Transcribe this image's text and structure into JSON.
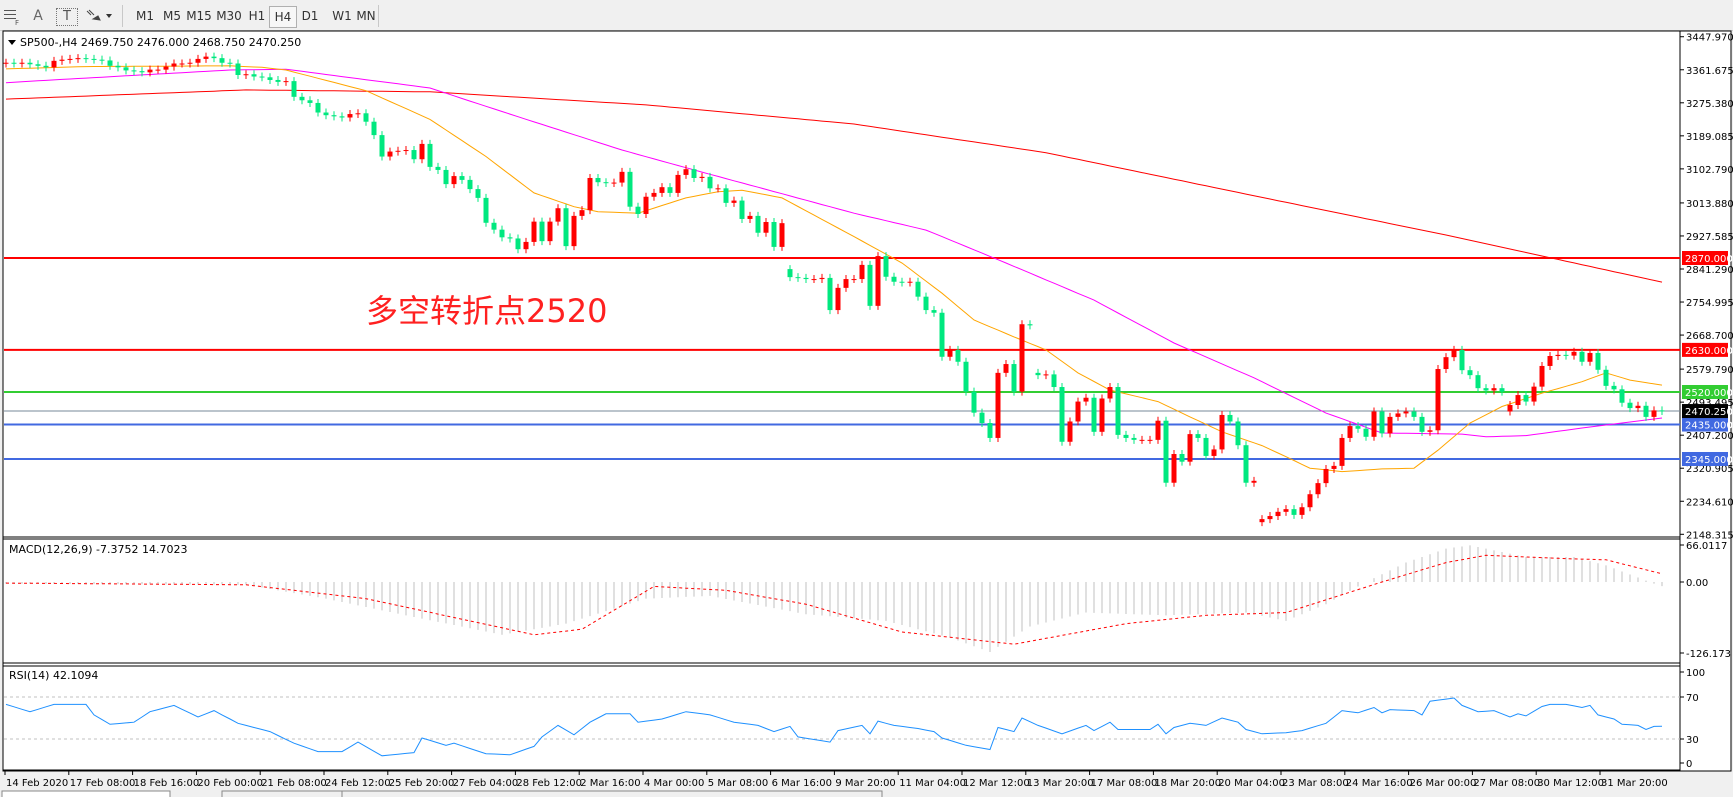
{
  "toolbar": {
    "tools": [
      {
        "icon": "period-separator-icon"
      },
      {
        "label": "A",
        "icon": "text-icon"
      },
      {
        "label": "T",
        "icon": "text-label-icon"
      },
      {
        "icon": "arrows-icon"
      }
    ],
    "timeframes": [
      "M1",
      "M5",
      "M15",
      "M30",
      "H1",
      "H4",
      "D1",
      "W1",
      "MN"
    ],
    "selected_timeframe": "H4"
  },
  "main_panel": {
    "header": "SP500-,H4  2469.750 2476.000 2468.750 2470.250",
    "annotation": "多空转折点2520",
    "price_ticks": [
      "3447.970",
      "3361.675",
      "3275.380",
      "3189.085",
      "3102.790",
      "3013.880",
      "2927.585",
      "2841.290",
      "2754.995",
      "2668.700",
      "2579.790",
      "2493.495",
      "2407.200",
      "2320.905",
      "2234.610",
      "2148.315"
    ],
    "levels": [
      {
        "price": 2870,
        "label": "2870.000",
        "color": "#ff0000"
      },
      {
        "price": 2630,
        "label": "2630.000",
        "color": "#ff0000"
      },
      {
        "price": 2520,
        "label": "2520.000",
        "color": "#32cd32"
      },
      {
        "price": 2435,
        "label": "2435.000",
        "color": "#4169e1"
      },
      {
        "price": 2345,
        "label": "2345.000",
        "color": "#4169e1"
      }
    ],
    "current_price": {
      "price": 2470.25,
      "label": "2470.250",
      "color": "#000000"
    },
    "colors": {
      "up": "#ff0000",
      "down": "#00e87f",
      "ma_fast": "#ffa500",
      "ma_mid": "#ff00ff",
      "ma_slow": "#ff0000"
    }
  },
  "chart_data": {
    "type": "candlestick",
    "symbol": "SP500-",
    "timeframe": "H4",
    "first_open": 3378,
    "gap_opens": {
      "98": 2841,
      "129": 2570,
      "157": 2180,
      "188": 2469
    },
    "closes": [
      3380,
      3378,
      3380,
      3376,
      3372,
      3368,
      3385,
      3388,
      3390,
      3392,
      3390,
      3388,
      3386,
      3372,
      3368,
      3360,
      3358,
      3355,
      3362,
      3362,
      3370,
      3378,
      3378,
      3380,
      3390,
      3396,
      3392,
      3380,
      3378,
      3348,
      3350,
      3344,
      3342,
      3335,
      3330,
      3332,
      3291,
      3282,
      3275,
      3250,
      3243,
      3240,
      3237,
      3246,
      3248,
      3226,
      3191,
      3135,
      3148,
      3150,
      3152,
      3128,
      3168,
      3108,
      3100,
      3063,
      3084,
      3074,
      3050,
      3027,
      2962,
      2944,
      2924,
      2921,
      2893,
      2912,
      2965,
      2914,
      2965,
      3000,
      2901,
      2980,
      2995,
      3079,
      3068,
      3066,
      3067,
      3095,
      3004,
      2985,
      3030,
      3040,
      3055,
      3040,
      3087,
      3102,
      3079,
      3082,
      3052,
      3052,
      3014,
      3020,
      2972,
      2980,
      2936,
      2964,
      2899,
      2961,
      2820,
      2818,
      2815,
      2815,
      2818,
      2734,
      2792,
      2815,
      2815,
      2852,
      2745,
      2875,
      2821,
      2808,
      2806,
      2808,
      2769,
      2734,
      2727,
      2612,
      2630,
      2599,
      2521,
      2466,
      2439,
      2400,
      2570,
      2593,
      2521,
      2697,
      2694,
      2564,
      2566,
      2533,
      2390,
      2443,
      2495,
      2505,
      2416,
      2503,
      2533,
      2408,
      2400,
      2395,
      2395,
      2395,
      2445,
      2283,
      2358,
      2338,
      2410,
      2400,
      2353,
      2370,
      2460,
      2443,
      2381,
      2283,
      2288,
      2188,
      2196,
      2207,
      2214,
      2199,
      2219,
      2253,
      2282,
      2319,
      2327,
      2400,
      2431,
      2424,
      2403,
      2469,
      2412,
      2455,
      2464,
      2469,
      2455,
      2416,
      2420,
      2580,
      2611,
      2630,
      2577,
      2564,
      2530,
      2524,
      2530,
      2521,
      2486,
      2512,
      2495,
      2534,
      2588,
      2614,
      2617,
      2615,
      2625,
      2599,
      2622,
      2578,
      2536,
      2527,
      2492,
      2478,
      2484,
      2455,
      2472,
      2470.25
    ],
    "moving_averages": {
      "slow": [
        [
          0,
          3285
        ],
        [
          30,
          3309
        ],
        [
          53,
          3304
        ],
        [
          80,
          3270
        ],
        [
          106,
          3220
        ],
        [
          130,
          3145
        ],
        [
          158,
          3024
        ],
        [
          180,
          2930
        ],
        [
          207,
          2807
        ]
      ],
      "mid": [
        [
          0,
          3328
        ],
        [
          10,
          3340
        ],
        [
          28,
          3361
        ],
        [
          35,
          3363
        ],
        [
          53,
          3314
        ],
        [
          64,
          3239
        ],
        [
          77,
          3152
        ],
        [
          86,
          3100
        ],
        [
          106,
          2987
        ],
        [
          115,
          2943
        ],
        [
          125,
          2857
        ],
        [
          136,
          2760
        ],
        [
          146,
          2648
        ],
        [
          156,
          2557
        ],
        [
          165,
          2465
        ],
        [
          172,
          2413
        ],
        [
          182,
          2410
        ],
        [
          185,
          2403
        ],
        [
          190,
          2406
        ],
        [
          197,
          2426
        ],
        [
          207,
          2452
        ]
      ],
      "fast": [
        [
          0,
          3364
        ],
        [
          10,
          3370
        ],
        [
          28,
          3372
        ],
        [
          32,
          3368
        ],
        [
          35,
          3361
        ],
        [
          45,
          3307
        ],
        [
          53,
          3232
        ],
        [
          60,
          3135
        ],
        [
          66,
          3040
        ],
        [
          71,
          3004
        ],
        [
          74,
          2991
        ],
        [
          79,
          2987
        ],
        [
          85,
          3027
        ],
        [
          89,
          3043
        ],
        [
          92,
          3047
        ],
        [
          97,
          3027
        ],
        [
          106,
          2926
        ],
        [
          112,
          2857
        ],
        [
          117,
          2778
        ],
        [
          121,
          2708
        ],
        [
          126,
          2664
        ],
        [
          130,
          2630
        ],
        [
          134,
          2570
        ],
        [
          138,
          2525
        ],
        [
          144,
          2495
        ],
        [
          148,
          2455
        ],
        [
          152,
          2416
        ],
        [
          157,
          2380
        ],
        [
          160,
          2351
        ],
        [
          163,
          2321
        ],
        [
          167,
          2312
        ],
        [
          172,
          2319
        ],
        [
          176,
          2321
        ],
        [
          179,
          2368
        ],
        [
          183,
          2439
        ],
        [
          187,
          2482
        ],
        [
          192,
          2517
        ],
        [
          197,
          2547
        ],
        [
          200,
          2570
        ],
        [
          203,
          2551
        ],
        [
          207,
          2538
        ]
      ]
    },
    "time_labels": [
      "14 Feb 2020",
      "17 Feb 08:00",
      "18 Feb 16:00",
      "20 Feb 00:00",
      "21 Feb 08:00",
      "24 Feb 12:00",
      "25 Feb 20:00",
      "27 Feb 04:00",
      "28 Feb 12:00",
      "2 Mar 16:00",
      "4 Mar 00:00",
      "5 Mar 08:00",
      "6 Mar 16:00",
      "9 Mar 20:00",
      "11 Mar 04:00",
      "12 Mar 12:00",
      "13 Mar 20:00",
      "17 Mar 08:00",
      "18 Mar 20:00",
      "20 Mar 04:00",
      "23 Mar 08:00",
      "24 Mar 16:00",
      "26 Mar 00:00",
      "27 Mar 08:00",
      "30 Mar 12:00",
      "31 Mar 20:00"
    ],
    "price_range": [
      2148.315,
      3447.97
    ]
  },
  "macd": {
    "header": "MACD(12,26,9) -7.3752 14.7023",
    "ticks": [
      "66.0117",
      "0.00",
      "-126.173"
    ],
    "range": [
      -126.173,
      66.0117
    ],
    "histogram": [
      [
        0,
        -3
      ],
      [
        30,
        -5
      ],
      [
        40,
        -30
      ],
      [
        50,
        -60
      ],
      [
        62,
        -95
      ],
      [
        70,
        -75
      ],
      [
        80,
        -30
      ],
      [
        88,
        -25
      ],
      [
        100,
        -58
      ],
      [
        110,
        -70
      ],
      [
        118,
        -100
      ],
      [
        123,
        -126
      ],
      [
        128,
        -80
      ],
      [
        135,
        -55
      ],
      [
        145,
        -60
      ],
      [
        155,
        -55
      ],
      [
        160,
        -70
      ],
      [
        165,
        -40
      ],
      [
        170,
        0
      ],
      [
        175,
        35
      ],
      [
        180,
        60
      ],
      [
        183,
        66
      ],
      [
        190,
        45
      ],
      [
        196,
        45
      ],
      [
        200,
        30
      ],
      [
        204,
        8
      ],
      [
        206,
        -3
      ],
      [
        207,
        -7.3752
      ]
    ],
    "signal": [
      [
        0,
        -2
      ],
      [
        30,
        -5
      ],
      [
        45,
        -30
      ],
      [
        58,
        -70
      ],
      [
        66,
        -95
      ],
      [
        72,
        -85
      ],
      [
        81,
        -8
      ],
      [
        90,
        -15
      ],
      [
        100,
        -40
      ],
      [
        112,
        -90
      ],
      [
        126,
        -112
      ],
      [
        140,
        -75
      ],
      [
        150,
        -60
      ],
      [
        160,
        -55
      ],
      [
        172,
        0
      ],
      [
        180,
        35
      ],
      [
        185,
        48
      ],
      [
        195,
        42
      ],
      [
        200,
        40
      ],
      [
        207,
        14.7023
      ]
    ],
    "colors": {
      "histogram": "#c0c0c0",
      "signal": "#ff0000"
    }
  },
  "rsi": {
    "header": "RSI(14) 42.1094",
    "ticks": [
      "100",
      "70",
      "30",
      "0"
    ],
    "levels": [
      70,
      30
    ],
    "values": [
      [
        0,
        63
      ],
      [
        3,
        56
      ],
      [
        6,
        63
      ],
      [
        10,
        63
      ],
      [
        11,
        53
      ],
      [
        13,
        44
      ],
      [
        16,
        46
      ],
      [
        18,
        56
      ],
      [
        21,
        62
      ],
      [
        24,
        51
      ],
      [
        26,
        57
      ],
      [
        29,
        45
      ],
      [
        33,
        37
      ],
      [
        36,
        26
      ],
      [
        39,
        18
      ],
      [
        42,
        18
      ],
      [
        44,
        27
      ],
      [
        47,
        14
      ],
      [
        51,
        17
      ],
      [
        52,
        31
      ],
      [
        55,
        24
      ],
      [
        56,
        26
      ],
      [
        60,
        16
      ],
      [
        63,
        15
      ],
      [
        66,
        23
      ],
      [
        67,
        32
      ],
      [
        69,
        43
      ],
      [
        71,
        34
      ],
      [
        73,
        46
      ],
      [
        75,
        54
      ],
      [
        78,
        54
      ],
      [
        79,
        46
      ],
      [
        82,
        49
      ],
      [
        85,
        56
      ],
      [
        88,
        53
      ],
      [
        91,
        46
      ],
      [
        94,
        43
      ],
      [
        96,
        37
      ],
      [
        98,
        42
      ],
      [
        99,
        32
      ],
      [
        103,
        27
      ],
      [
        104,
        38
      ],
      [
        107,
        43
      ],
      [
        108,
        35
      ],
      [
        109,
        47
      ],
      [
        111,
        43
      ],
      [
        114,
        40
      ],
      [
        116,
        37
      ],
      [
        117,
        31
      ],
      [
        120,
        24
      ],
      [
        123,
        20
      ],
      [
        124,
        41
      ],
      [
        126,
        37
      ],
      [
        127,
        50
      ],
      [
        129,
        43
      ],
      [
        132,
        35
      ],
      [
        135,
        43
      ],
      [
        136,
        38
      ],
      [
        138,
        46
      ],
      [
        139,
        39
      ],
      [
        143,
        39
      ],
      [
        144,
        44
      ],
      [
        145,
        35
      ],
      [
        146,
        41
      ],
      [
        148,
        45
      ],
      [
        150,
        43
      ],
      [
        152,
        50
      ],
      [
        154,
        46
      ],
      [
        155,
        39
      ],
      [
        157,
        35
      ],
      [
        160,
        36
      ],
      [
        162,
        38
      ],
      [
        165,
        45
      ],
      [
        167,
        57
      ],
      [
        169,
        55
      ],
      [
        171,
        60
      ],
      [
        172,
        55
      ],
      [
        173,
        58
      ],
      [
        176,
        57
      ],
      [
        177,
        53
      ],
      [
        178,
        66
      ],
      [
        181,
        69
      ],
      [
        182,
        62
      ],
      [
        184,
        56
      ],
      [
        186,
        57
      ],
      [
        188,
        51
      ],
      [
        189,
        54
      ],
      [
        190,
        52
      ],
      [
        192,
        61
      ],
      [
        193,
        63
      ],
      [
        195,
        63
      ],
      [
        197,
        60
      ],
      [
        198,
        62
      ],
      [
        199,
        53
      ],
      [
        201,
        49
      ],
      [
        202,
        44
      ],
      [
        204,
        43
      ],
      [
        205,
        39
      ],
      [
        206,
        42
      ],
      [
        207,
        42.1094
      ]
    ],
    "color": "#1e90ff"
  }
}
